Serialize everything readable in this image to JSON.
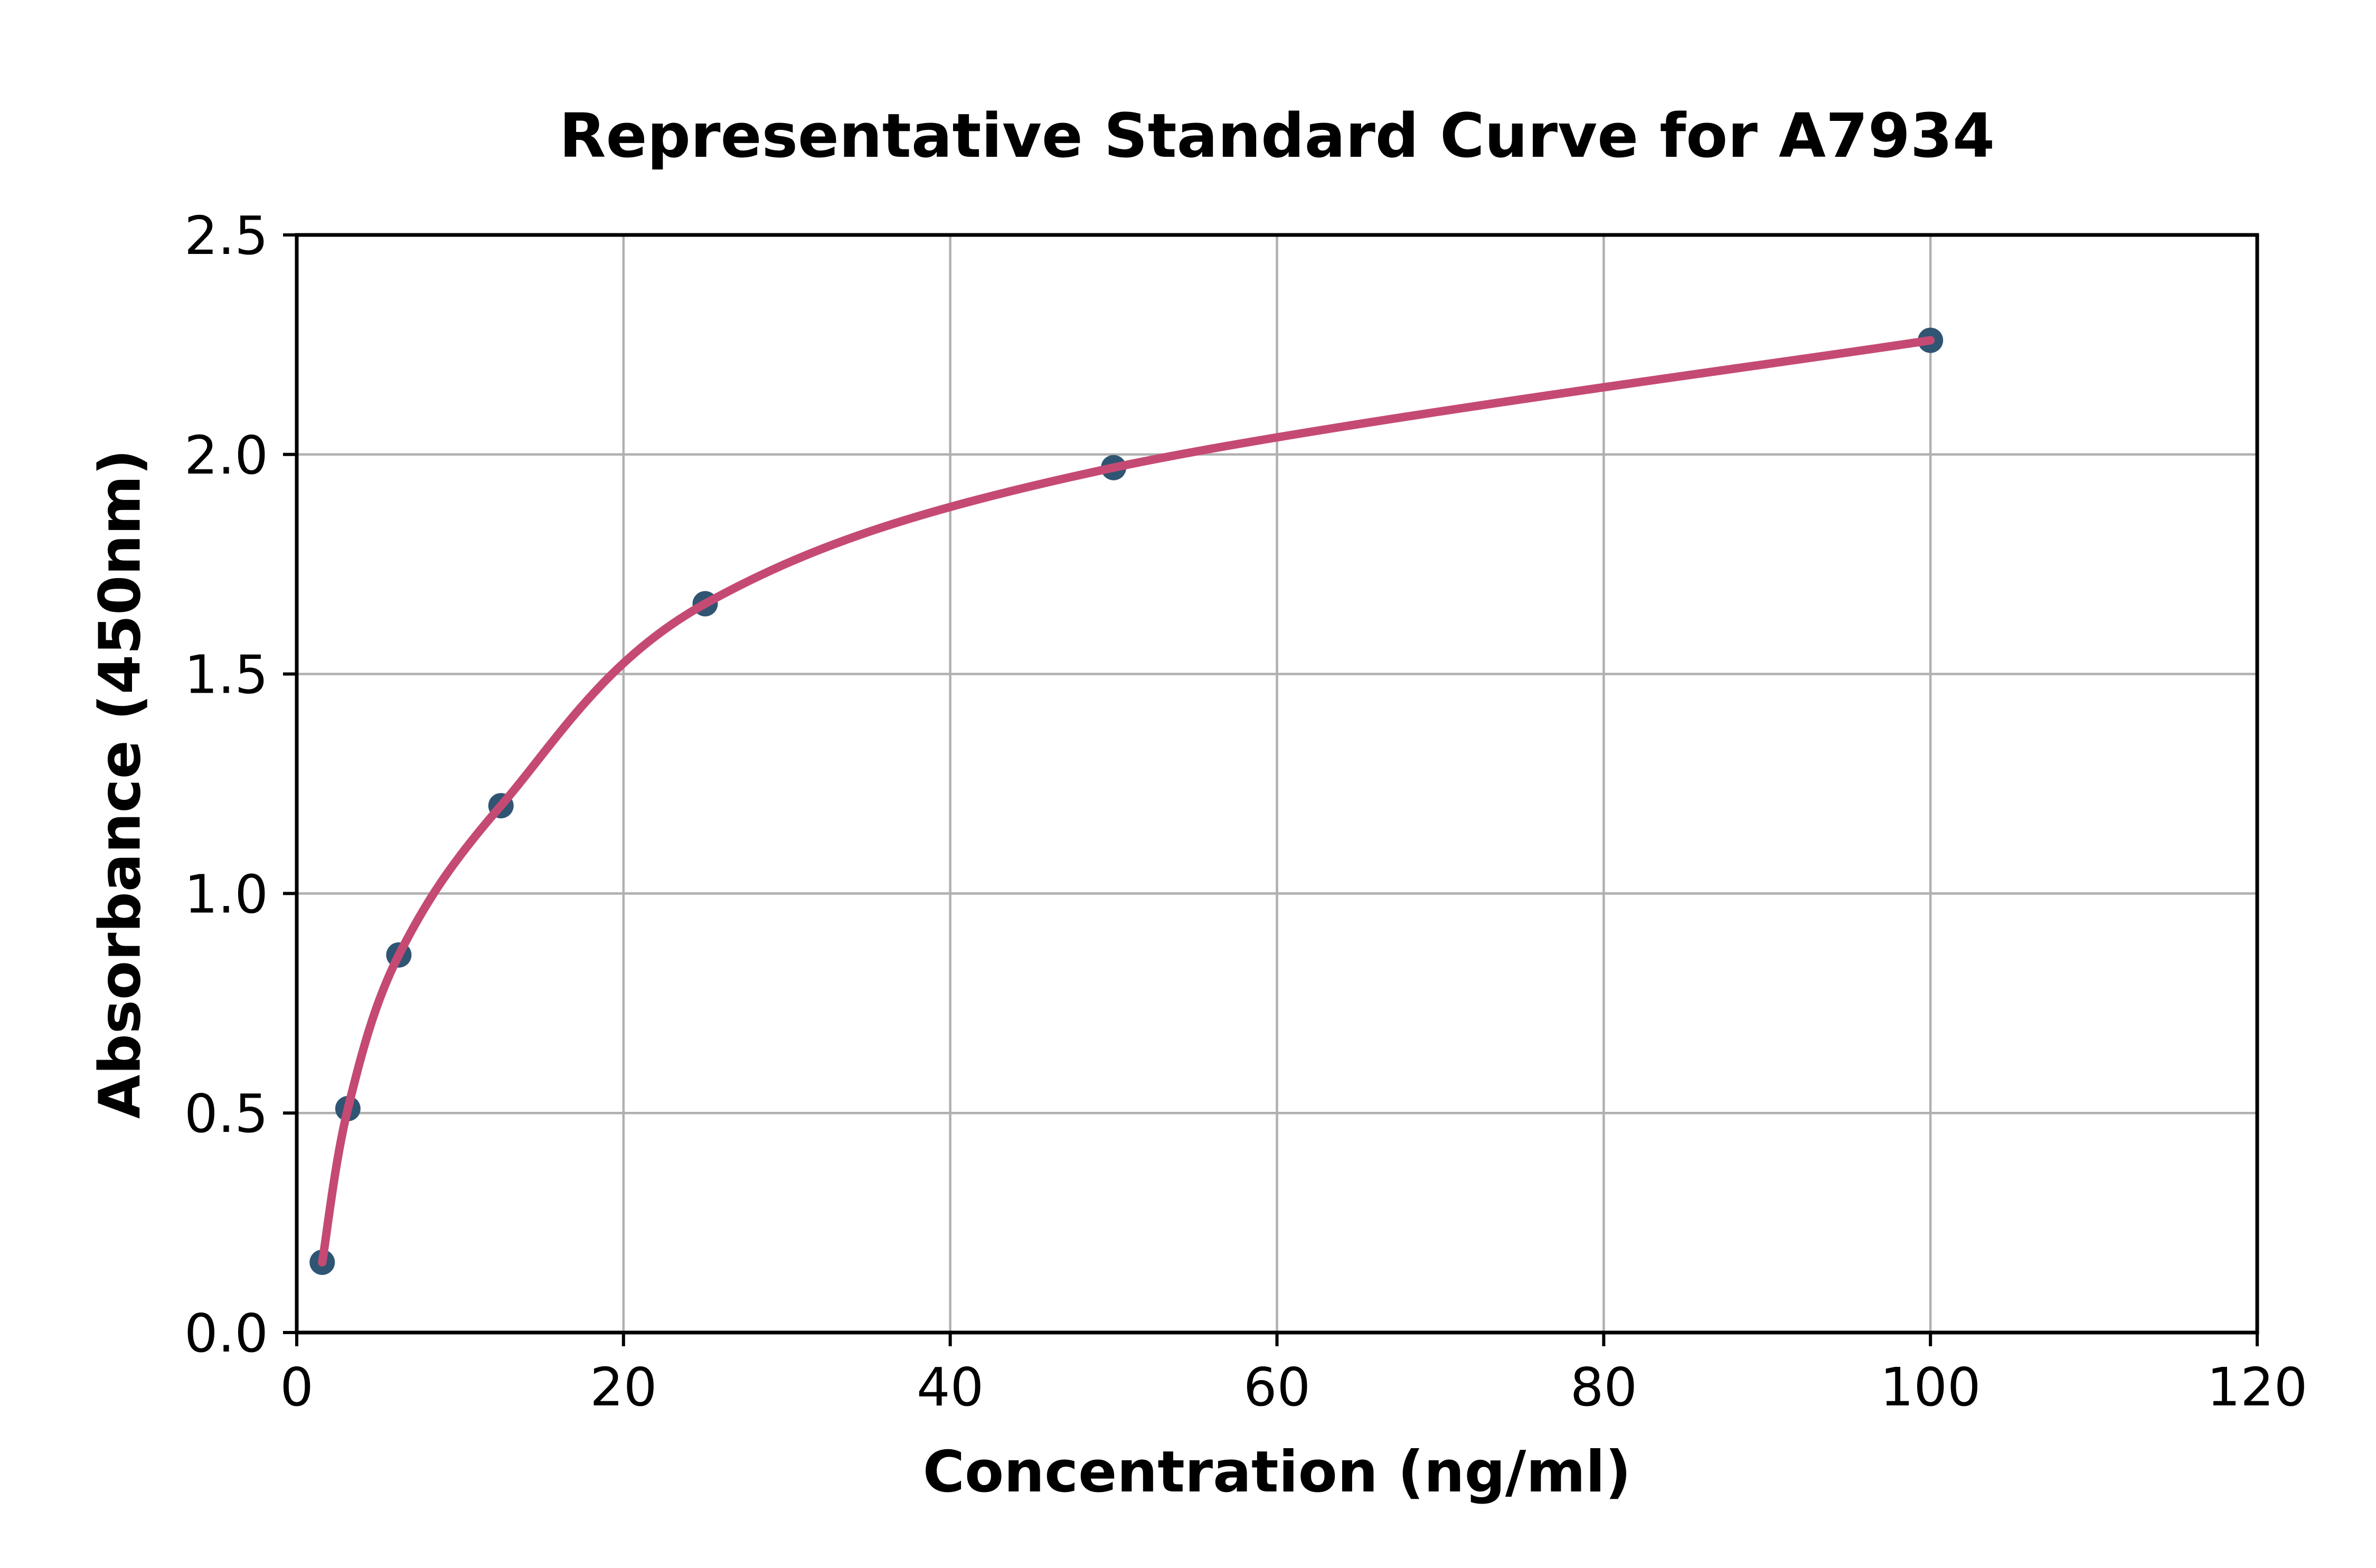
{
  "chart_data": {
    "type": "scatter",
    "title": "Representative Standard Curve for A7934",
    "xlabel": "Concentration (ng/ml)",
    "ylabel": "Absorbance (450nm)",
    "xlim": [
      0,
      120
    ],
    "ylim": [
      0,
      2.5
    ],
    "xtick_labels": [
      "0",
      "20",
      "40",
      "60",
      "80",
      "100",
      "120"
    ],
    "ytick_labels": [
      "0.0",
      "0.5",
      "1.0",
      "1.5",
      "2.0",
      "2.5"
    ],
    "grid": true,
    "legend": null,
    "series": [
      {
        "name": "standard-points",
        "marker": "circle",
        "x": [
          1.56,
          3.13,
          6.25,
          12.5,
          25,
          50,
          100
        ],
        "y": [
          0.16,
          0.51,
          0.86,
          1.2,
          1.66,
          1.97,
          2.26
        ]
      },
      {
        "name": "fit-curve",
        "style": "smooth line through standard points"
      }
    ],
    "colors": {
      "marker": "#305573",
      "curve": "#c54a73",
      "grid": "#b0b0b0",
      "spine": "#000000",
      "background": "#ffffff"
    }
  }
}
